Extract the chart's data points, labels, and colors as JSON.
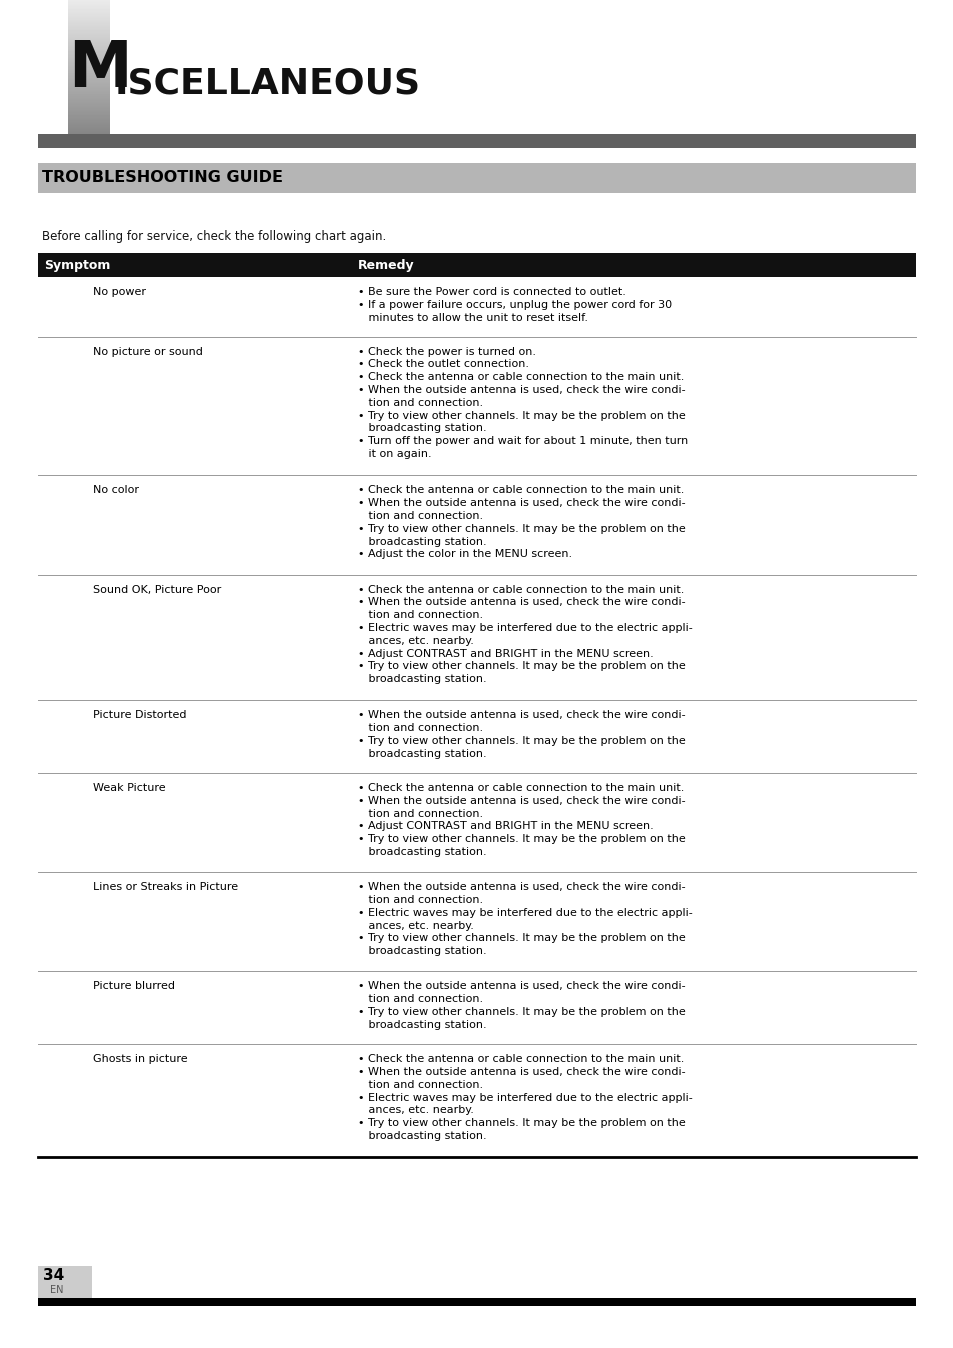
{
  "page_bg": "#ffffff",
  "header_bar_color": "#606060",
  "section_header_bg": "#b0b0b0",
  "table_header_bg": "#111111",
  "table_header_text": "#ffffff",
  "text_color": "#000000",
  "title_large": "M",
  "title_rest": "ISCELLANEOUS",
  "section_title": "TROUBLESHOOTING GUIDE",
  "intro_text": "Before calling for service, check the following chart again.",
  "col1_header": "Symptom",
  "col2_header": "Remedy",
  "page_number": "34",
  "page_lang": "EN",
  "rows": [
    {
      "symptom": "No power",
      "remedy": "• Be sure the Power cord is connected to outlet.\n• If a power failure occurs, unplug the power cord for 30\n   minutes to allow the unit to reset itself."
    },
    {
      "symptom": "No picture or sound",
      "remedy": "• Check the power is turned on.\n• Check the outlet connection.\n• Check the antenna or cable connection to the main unit.\n• When the outside antenna is used, check the wire condi-\n   tion and connection.\n• Try to view other channels. It may be the problem on the\n   broadcasting station.\n• Turn off the power and wait for about 1 minute, then turn\n   it on again."
    },
    {
      "symptom": "No color",
      "remedy": "• Check the antenna or cable connection to the main unit.\n• When the outside antenna is used, check the wire condi-\n   tion and connection.\n• Try to view other channels. It may be the problem on the\n   broadcasting station.\n• Adjust the color in the MENU screen."
    },
    {
      "symptom": "Sound OK, Picture Poor",
      "remedy": "• Check the antenna or cable connection to the main unit.\n• When the outside antenna is used, check the wire condi-\n   tion and connection.\n• Electric waves may be interfered due to the electric appli-\n   ances, etc. nearby.\n• Adjust CONTRAST and BRIGHT in the MENU screen.\n• Try to view other channels. It may be the problem on the\n   broadcasting station."
    },
    {
      "symptom": "Picture Distorted",
      "remedy": "• When the outside antenna is used, check the wire condi-\n   tion and connection.\n• Try to view other channels. It may be the problem on the\n   broadcasting station."
    },
    {
      "symptom": "Weak Picture",
      "remedy": "• Check the antenna or cable connection to the main unit.\n• When the outside antenna is used, check the wire condi-\n   tion and connection.\n• Adjust CONTRAST and BRIGHT in the MENU screen.\n• Try to view other channels. It may be the problem on the\n   broadcasting station."
    },
    {
      "symptom": "Lines or Streaks in Picture",
      "remedy": "• When the outside antenna is used, check the wire condi-\n   tion and connection.\n• Electric waves may be interfered due to the electric appli-\n   ances, etc. nearby.\n• Try to view other channels. It may be the problem on the\n   broadcasting station."
    },
    {
      "symptom": "Picture blurred",
      "remedy": "• When the outside antenna is used, check the wire condi-\n   tion and connection.\n• Try to view other channels. It may be the problem on the\n   broadcasting station."
    },
    {
      "symptom": "Ghosts in picture",
      "remedy": "• Check the antenna or cable connection to the main unit.\n• When the outside antenna is used, check the wire condi-\n   tion and connection.\n• Electric waves may be interfered due to the electric appli-\n   ances, etc. nearby.\n• Try to view other channels. It may be the problem on the\n   broadcasting station."
    }
  ]
}
